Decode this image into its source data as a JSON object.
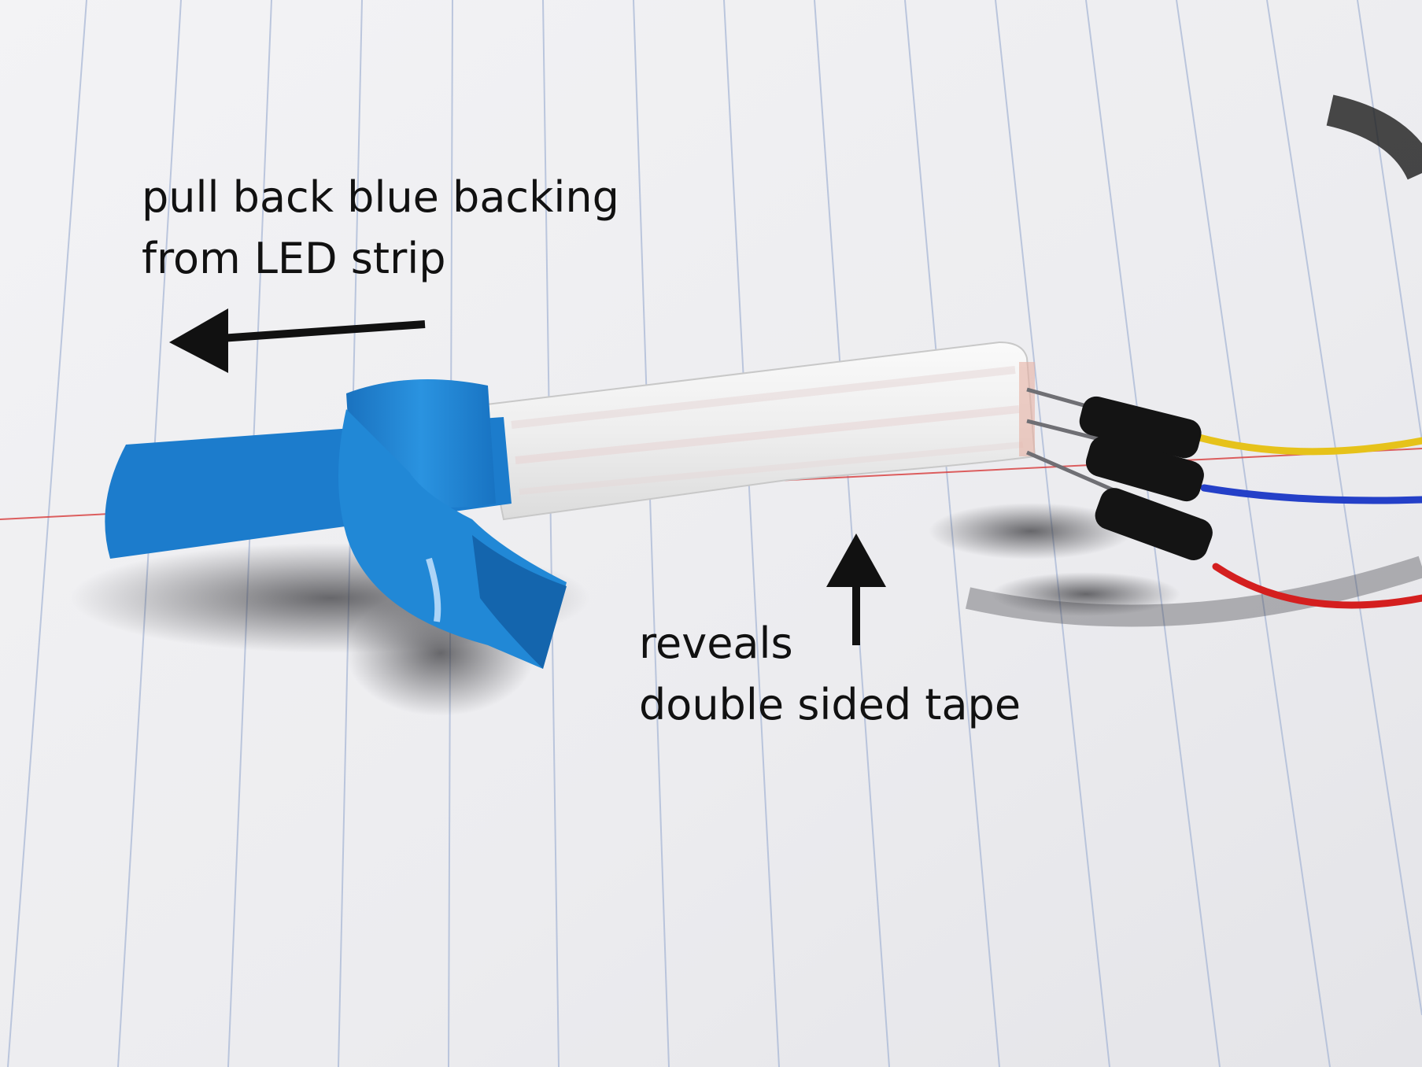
{
  "annotations": {
    "pull_backing": {
      "lines": [
        "pull back blue backing",
        "from LED strip"
      ]
    },
    "reveals_tape": {
      "lines": [
        "reveals",
        "double sided tape"
      ]
    }
  },
  "colors": {
    "paper": "#f1f1f3",
    "ruled_line": "#a9b8d6",
    "margin_line": "#d83a3a",
    "blue_backing": "#1f86d4",
    "led_strip": "#f0f0f0",
    "connector": "#141414",
    "wire_yellow": "#e6c21a",
    "wire_blue": "#2440c8",
    "wire_red": "#d41f1f",
    "arrow": "#111111"
  },
  "icons": [
    "arrow-left-icon",
    "arrow-up-icon"
  ]
}
